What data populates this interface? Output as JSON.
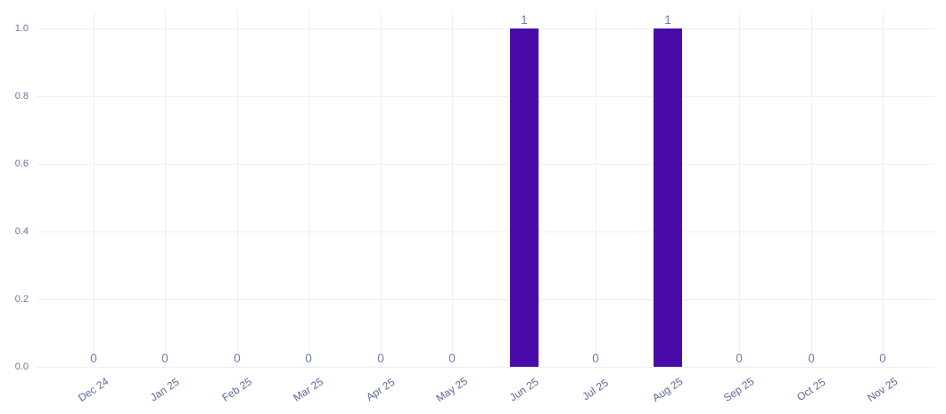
{
  "chart_data": {
    "type": "bar",
    "title": "",
    "xlabel": "",
    "ylabel": "",
    "categories": [
      "Dec 24",
      "Jan 25",
      "Feb 25",
      "Mar 25",
      "Apr 25",
      "May 25",
      "Jun 25",
      "Jul 25",
      "Aug 25",
      "Sep 25",
      "Oct 25",
      "Nov 25"
    ],
    "values": [
      0,
      0,
      0,
      0,
      0,
      0,
      1,
      0,
      1,
      0,
      0,
      0
    ],
    "data_labels": [
      "0",
      "0",
      "0",
      "0",
      "0",
      "0",
      "1",
      "0",
      "1",
      "0",
      "0",
      "0"
    ],
    "ylim": [
      0.0,
      1.0
    ],
    "yticks": [
      0.0,
      0.2,
      0.4,
      0.6,
      0.8,
      1.0
    ],
    "ytick_labels": [
      "0.0",
      "0.2",
      "0.4",
      "0.6",
      "0.8",
      "1.0"
    ],
    "grid": true,
    "gridlines": "horizontal-and-vertical",
    "legend": "none",
    "colors": {
      "bar": "#4a0ca8",
      "grid": "#edeef9",
      "ytick_text": "#6c7498",
      "xtick_text": "#5e6a9c",
      "data_label_text": "#6f7da4",
      "background": "#ffffff"
    }
  }
}
